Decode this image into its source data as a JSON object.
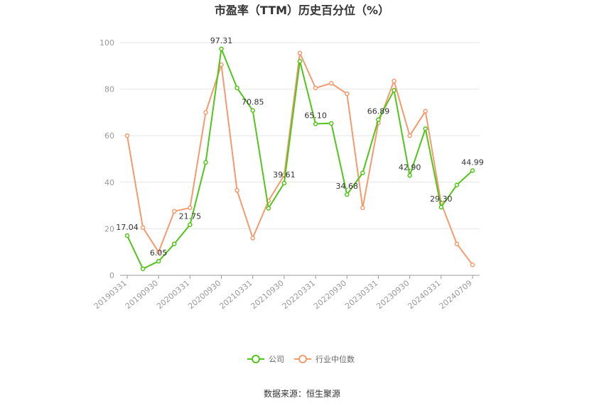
{
  "chart_data": {
    "type": "line",
    "title": "市盈率（TTM）历史百分位（%）",
    "categories": [
      "20190331",
      "20190630",
      "20190930",
      "20191231",
      "20200331",
      "20200630",
      "20200930",
      "20201231",
      "20210331",
      "20210630",
      "20210930",
      "20211231",
      "20220331",
      "20220630",
      "20220930",
      "20221231",
      "20230331",
      "20230630",
      "20230930",
      "20231231",
      "20240331",
      "20240630",
      "20240709"
    ],
    "x_tick_labels": [
      "20190331",
      "20190930",
      "20200331",
      "20200930",
      "20210331",
      "20210930",
      "20220331",
      "20220930",
      "20230331",
      "20230930",
      "20240331",
      "20240709"
    ],
    "ylim": [
      0,
      100
    ],
    "y_ticks": [
      0,
      20,
      40,
      60,
      80,
      100
    ],
    "grid": true,
    "legend_position": "bottom",
    "series": [
      {
        "name": "公司",
        "color": "#52c41a",
        "values": [
          17.04,
          2.8,
          6.05,
          13.5,
          21.75,
          48.5,
          97.31,
          80.5,
          70.85,
          28.8,
          39.61,
          92.0,
          65.1,
          65.3,
          34.68,
          44.0,
          66.89,
          79.5,
          42.9,
          63.0,
          29.3,
          38.8,
          44.99
        ],
        "labels": {
          "0": "17.04",
          "2": "6.05",
          "4": "21.75",
          "6": "97.31",
          "8": "70.85",
          "10": "39.61",
          "12": "65.10",
          "14": "34.68",
          "16": "66.89",
          "18": "42.90",
          "20": "29.30",
          "22": "44.99"
        }
      },
      {
        "name": "行业中位数",
        "color": "#f59a6e",
        "values": [
          60.0,
          20.5,
          10.0,
          27.5,
          29.0,
          70.0,
          90.5,
          36.5,
          16.0,
          32.0,
          43.0,
          95.5,
          80.5,
          82.5,
          78.0,
          29.0,
          65.5,
          83.5,
          60.0,
          70.5,
          31.0,
          13.5,
          4.5
        ]
      }
    ]
  },
  "legend": {
    "company": "公司",
    "industry": "行业中位数"
  },
  "source": "数据来源：恒生聚源"
}
